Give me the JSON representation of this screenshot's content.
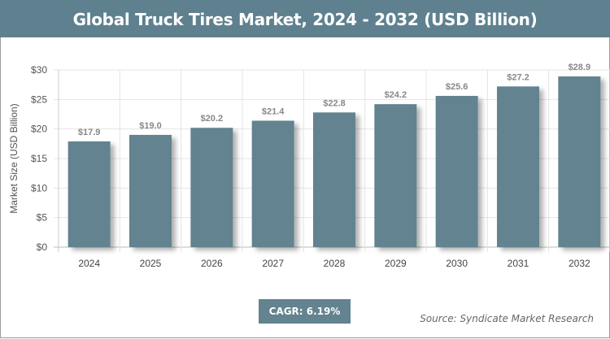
{
  "chart_data": {
    "type": "bar",
    "title": "Global Truck Tires Market, 2024 - 2032 (USD Billion)",
    "xlabel": "",
    "ylabel": "Market Size (USD Billion)",
    "categories": [
      "2024",
      "2025",
      "2026",
      "2027",
      "2028",
      "2029",
      "2030",
      "2031",
      "2032"
    ],
    "values": [
      17.9,
      19.0,
      20.2,
      21.4,
      22.8,
      24.2,
      25.6,
      27.2,
      28.9
    ],
    "data_labels": [
      "$17.9",
      "$19.0",
      "$20.2",
      "$21.4",
      "$22.8",
      "$24.2",
      "$25.6",
      "$27.2",
      "$28.9"
    ],
    "ylim": [
      0,
      30
    ],
    "yticks": [
      0,
      5,
      10,
      15,
      20,
      25,
      30
    ],
    "ytick_labels": [
      "$0",
      "$5",
      "$10",
      "$15",
      "$20",
      "$25",
      "$30"
    ],
    "grid": true,
    "bar_color": "#62838f",
    "header_color": "#5f818f"
  },
  "footer": {
    "cagr": "CAGR: 6.19%",
    "source": "Source: Syndicate Market Research"
  }
}
